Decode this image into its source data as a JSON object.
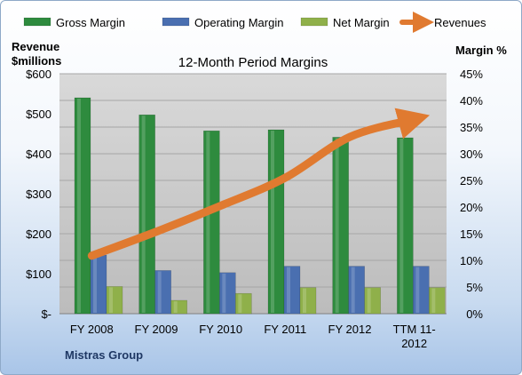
{
  "chart_data": {
    "type": "bar",
    "title": "12-Month Period Margins",
    "left_axis_title_line1": "Revenue",
    "left_axis_title_line2": "$millions",
    "right_axis_title": "Margin %",
    "footer": "Mistras Group",
    "categories": [
      "FY 2008",
      "FY 2009",
      "FY 2010",
      "FY 2011",
      "FY 2012",
      "TTM 11-2012"
    ],
    "category_lines": [
      [
        "FY 2008"
      ],
      [
        "FY 2009"
      ],
      [
        "FY 2010"
      ],
      [
        "FY 2011"
      ],
      [
        "FY 2012"
      ],
      [
        "TTM 11-",
        "2012"
      ]
    ],
    "left_ticks": [
      "$-",
      "$100",
      "$200",
      "$300",
      "$400",
      "$500",
      "$600"
    ],
    "right_ticks": [
      "0%",
      "5%",
      "10%",
      "15%",
      "20%",
      "25%",
      "30%",
      "35%",
      "40%",
      "45%"
    ],
    "ylim_left": [
      0,
      600
    ],
    "ylim_right": [
      0,
      45
    ],
    "series": [
      {
        "name": "Gross Margin",
        "axis": "right",
        "type": "bar",
        "color": "#2e8b3e",
        "values": [
          40.5,
          37.3,
          34.3,
          34.5,
          33.1,
          33.0
        ]
      },
      {
        "name": "Operating Margin",
        "axis": "right",
        "type": "bar",
        "color": "#4a6fb0",
        "values": [
          11.0,
          8.1,
          7.7,
          8.9,
          8.9,
          8.9
        ]
      },
      {
        "name": "Net Margin",
        "axis": "right",
        "type": "bar",
        "color": "#8fb04a",
        "values": [
          5.1,
          2.5,
          3.8,
          4.9,
          4.9,
          4.9
        ]
      },
      {
        "name": "Revenues",
        "axis": "left",
        "type": "line",
        "color": "#e07a30",
        "values": [
          145,
          205,
          270,
          340,
          442,
          486
        ]
      }
    ],
    "grid": true,
    "legend_position": "top"
  }
}
